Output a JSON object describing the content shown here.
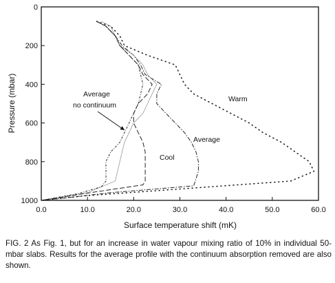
{
  "chart_data": {
    "type": "line",
    "xlabel": "Surface temperature shift (mK)",
    "ylabel": "Pressure (mbar)",
    "xlim": [
      0,
      60
    ],
    "ylim": [
      0,
      1000
    ],
    "y_inverted": true,
    "grid": false,
    "xticks": [
      "0.0",
      "10.0",
      "20.0",
      "30.0",
      "40.0",
      "50.0",
      "60.0"
    ],
    "yticks": [
      "0",
      "200",
      "400",
      "600",
      "800",
      "1000"
    ],
    "annotations": {
      "warm": "Warm",
      "average": "Average",
      "cool": "Cool",
      "no_continuum_line1": "Average",
      "no_continuum_line2": "no continuum"
    },
    "series": [
      {
        "style": "dotted-sparse",
        "points": [
          [
            12,
            75
          ],
          [
            15,
            100
          ],
          [
            17,
            150
          ],
          [
            18,
            200
          ],
          [
            23,
            250
          ],
          [
            29,
            300
          ],
          [
            30,
            350
          ],
          [
            31,
            400
          ],
          [
            33,
            450
          ],
          [
            37,
            500
          ],
          [
            41,
            550
          ],
          [
            45,
            600
          ],
          [
            48,
            650
          ],
          [
            52,
            700
          ],
          [
            55,
            750
          ],
          [
            58,
            800
          ],
          [
            59,
            850
          ],
          [
            54,
            900
          ],
          [
            25,
            950
          ],
          [
            10,
            975
          ],
          [
            0,
            1000
          ]
        ]
      },
      {
        "style": "dash-dot",
        "points": [
          [
            12,
            75
          ],
          [
            14,
            100
          ],
          [
            16,
            150
          ],
          [
            17.5,
            200
          ],
          [
            20,
            250
          ],
          [
            21.5,
            300
          ],
          [
            22.5,
            350
          ],
          [
            26,
            400
          ],
          [
            25,
            450
          ],
          [
            25,
            500
          ],
          [
            27,
            550
          ],
          [
            29,
            600
          ],
          [
            31,
            650
          ],
          [
            32.5,
            700
          ],
          [
            33.5,
            750
          ],
          [
            34,
            800
          ],
          [
            34,
            850
          ],
          [
            33,
            925
          ],
          [
            15,
            960
          ],
          [
            6,
            985
          ],
          [
            0,
            1000
          ]
        ]
      },
      {
        "style": "solid-thin",
        "points": [
          [
            13,
            75
          ],
          [
            15,
            100
          ],
          [
            16,
            150
          ],
          [
            17,
            200
          ],
          [
            20,
            250
          ],
          [
            22,
            300
          ],
          [
            23,
            350
          ],
          [
            25,
            400
          ],
          [
            24,
            450
          ],
          [
            23,
            500
          ],
          [
            22,
            550
          ],
          [
            20,
            600
          ],
          [
            19,
            650
          ],
          [
            18,
            700
          ],
          [
            17.5,
            750
          ],
          [
            17,
            800
          ],
          [
            16.5,
            850
          ],
          [
            16,
            900
          ],
          [
            10,
            960
          ],
          [
            0,
            1000
          ]
        ]
      },
      {
        "style": "long-dash",
        "points": [
          [
            12,
            75
          ],
          [
            14,
            100
          ],
          [
            16,
            150
          ],
          [
            17,
            200
          ],
          [
            19,
            250
          ],
          [
            21,
            300
          ],
          [
            22,
            350
          ],
          [
            24,
            400
          ],
          [
            23,
            450
          ],
          [
            21,
            500
          ],
          [
            20,
            550
          ],
          [
            20,
            600
          ],
          [
            21,
            650
          ],
          [
            22,
            700
          ],
          [
            22.5,
            750
          ],
          [
            22.5,
            800
          ],
          [
            22.5,
            850
          ],
          [
            22.5,
            900
          ],
          [
            22,
            920
          ],
          [
            12,
            955
          ],
          [
            0,
            1000
          ]
        ]
      },
      {
        "style": "dash-dot-small",
        "points": [
          [
            12,
            75
          ],
          [
            14,
            100
          ],
          [
            16,
            150
          ],
          [
            17,
            200
          ],
          [
            19,
            250
          ],
          [
            21,
            300
          ],
          [
            21.5,
            350
          ],
          [
            22,
            400
          ],
          [
            21.5,
            450
          ],
          [
            21,
            500
          ],
          [
            20,
            550
          ],
          [
            19,
            600
          ],
          [
            18,
            650
          ],
          [
            17,
            700
          ],
          [
            15,
            750
          ],
          [
            14,
            800
          ],
          [
            14,
            850
          ],
          [
            14,
            900
          ],
          [
            13,
            930
          ],
          [
            8,
            965
          ],
          [
            0,
            1000
          ]
        ]
      }
    ]
  },
  "caption": "FIG. 2 As Fig. 1, but for an increase in water vapour mixing ratio of 10% in individual 50-mbar slabs. Results for the average profile with the continuum absorption removed are also shown."
}
